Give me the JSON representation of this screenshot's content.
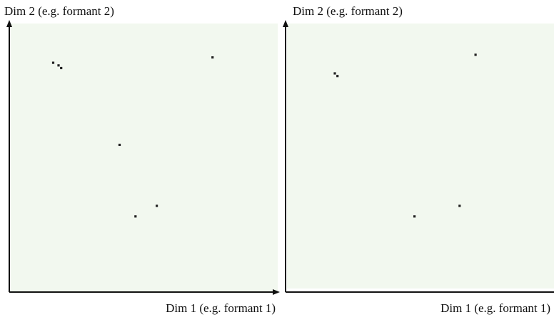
{
  "diagram": {
    "panels": [
      {
        "id": "left",
        "y_label": "Dim 2 (e.g. formant 2)",
        "x_label": "Dim 1 (e.g. formant 1)",
        "points": [
          {
            "x": 0.16,
            "y": 0.86
          },
          {
            "x": 0.18,
            "y": 0.85
          },
          {
            "x": 0.19,
            "y": 0.84
          },
          {
            "x": 0.76,
            "y": 0.88
          },
          {
            "x": 0.41,
            "y": 0.55
          },
          {
            "x": 0.55,
            "y": 0.32
          },
          {
            "x": 0.47,
            "y": 0.28
          }
        ]
      },
      {
        "id": "right",
        "y_label": "Dim 2 (e.g. formant 2)",
        "x_label": "Dim 1 (e.g. formant 1)",
        "points": [
          {
            "x": 0.18,
            "y": 0.82
          },
          {
            "x": 0.19,
            "y": 0.81
          },
          {
            "x": 0.71,
            "y": 0.89
          },
          {
            "x": 0.48,
            "y": 0.28
          },
          {
            "x": 0.65,
            "y": 0.32
          }
        ]
      }
    ]
  }
}
